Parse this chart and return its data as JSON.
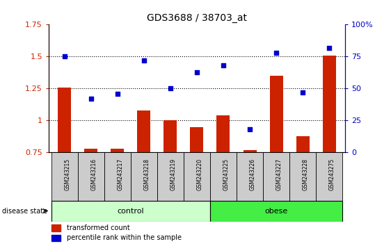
{
  "title": "GDS3688 / 38703_at",
  "categories": [
    "GSM243215",
    "GSM243216",
    "GSM243217",
    "GSM243218",
    "GSM243219",
    "GSM243220",
    "GSM243225",
    "GSM243226",
    "GSM243227",
    "GSM243228",
    "GSM243275"
  ],
  "bar_values": [
    1.26,
    0.78,
    0.78,
    1.08,
    1.0,
    0.95,
    1.04,
    0.77,
    1.35,
    0.88,
    1.51
  ],
  "scatter_pct": [
    75,
    42,
    46,
    72,
    50,
    63,
    68,
    18,
    78,
    47,
    82
  ],
  "bar_color": "#cc2200",
  "scatter_color": "#0000cc",
  "ylim_left": [
    0.75,
    1.75
  ],
  "ylim_right": [
    0,
    100
  ],
  "yticks_left": [
    0.75,
    1.0,
    1.25,
    1.5,
    1.75
  ],
  "ytick_labels_left": [
    "0.75",
    "1",
    "1.25",
    "1.5",
    "1.75"
  ],
  "yticks_right": [
    0,
    25,
    50,
    75,
    100
  ],
  "ytick_labels_right": [
    "0",
    "25",
    "50",
    "75",
    "100%"
  ],
  "hlines": [
    1.0,
    1.25,
    1.5
  ],
  "control_n": 6,
  "obese_n": 5,
  "control_label": "control",
  "obese_label": "obese",
  "disease_state_label": "disease state",
  "legend_bar_label": "transformed count",
  "legend_scatter_label": "percentile rank within the sample",
  "control_color": "#ccffcc",
  "obese_color": "#44ee44",
  "xtick_bg": "#cccccc",
  "bar_bottom": 0.75,
  "bar_width": 0.5
}
